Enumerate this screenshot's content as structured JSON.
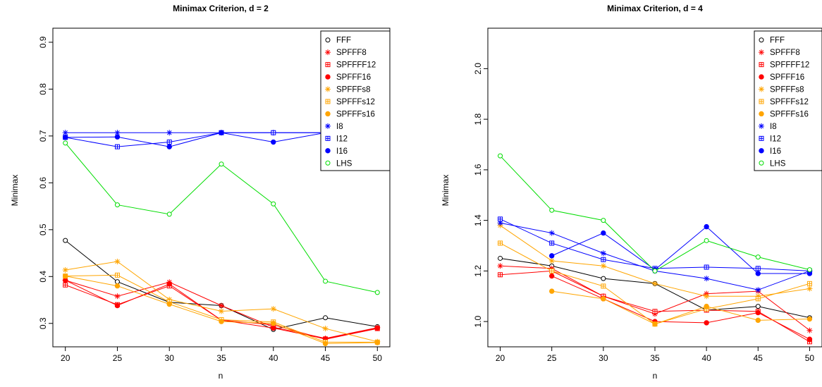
{
  "chart_data": [
    {
      "type": "line",
      "title": "Minimax Criterion, d = 2",
      "xlabel": "n",
      "ylabel": "Minimax",
      "xlim": [
        20,
        50
      ],
      "ylim": [
        0.25,
        0.93
      ],
      "x_ticks": [
        "20",
        "25",
        "30",
        "35",
        "40",
        "45",
        "50"
      ],
      "y_ticks": [
        "0.3",
        "0.4",
        "0.5",
        "0.6",
        "0.7",
        "0.8",
        "0.9"
      ],
      "legend_position": "top-right",
      "x": [
        20,
        25,
        30,
        35,
        40,
        45,
        50
      ],
      "series": [
        {
          "name": "FFF",
          "color": "#000000",
          "symbol": "circle-open",
          "values": [
            0.477,
            0.389,
            0.345,
            0.338,
            0.287,
            0.312,
            0.293
          ]
        },
        {
          "name": "SPFFF8",
          "color": "#ff0000",
          "symbol": "star",
          "values": [
            0.392,
            0.358,
            0.388,
            0.338,
            0.292,
            0.268,
            0.291
          ]
        },
        {
          "name": "SPFFFF12",
          "color": "#ff0000",
          "symbol": "square-plus",
          "values": [
            0.382,
            0.34,
            0.38,
            0.307,
            0.297,
            0.266,
            0.289
          ]
        },
        {
          "name": "SPFFF16",
          "color": "#ff0000",
          "symbol": "circle-filled",
          "values": [
            0.392,
            0.338,
            0.384,
            0.307,
            0.29,
            0.267,
            0.29
          ]
        },
        {
          "name": "SPFFFs8",
          "color": "#ffa500",
          "symbol": "star",
          "values": [
            0.414,
            0.432,
            0.351,
            0.326,
            0.331,
            0.289,
            0.261
          ]
        },
        {
          "name": "SPFFFs12",
          "color": "#ffa500",
          "symbol": "square-plus",
          "values": [
            0.401,
            0.403,
            0.346,
            0.308,
            0.303,
            0.26,
            0.26
          ]
        },
        {
          "name": "SPFFFs16",
          "color": "#ffa500",
          "symbol": "circle-filled",
          "values": [
            0.401,
            0.38,
            0.341,
            0.304,
            0.3,
            0.257,
            0.259
          ]
        },
        {
          "name": "I8",
          "color": "#0000ff",
          "symbol": "star",
          "values": [
            0.707,
            0.707,
            0.707,
            0.707,
            0.707,
            0.707,
            0.707
          ]
        },
        {
          "name": "I12",
          "color": "#0000ff",
          "symbol": "square-plus",
          "values": [
            0.697,
            0.677,
            0.687,
            0.707,
            0.707,
            0.707,
            0.707
          ]
        },
        {
          "name": "I16",
          "color": "#0000ff",
          "symbol": "circle-filled",
          "values": [
            0.697,
            0.698,
            0.677,
            0.707,
            0.687,
            0.707,
            0.707
          ]
        },
        {
          "name": "LHS",
          "color": "#00dd00",
          "symbol": "circle-open",
          "values": [
            0.685,
            0.553,
            0.533,
            0.64,
            0.555,
            0.39,
            0.366
          ]
        }
      ]
    },
    {
      "type": "line",
      "title": "Minimax Criterion, d = 4",
      "xlabel": "n",
      "ylabel": "Minimax",
      "xlim": [
        20,
        50
      ],
      "ylim": [
        0.9,
        2.16
      ],
      "x_ticks": [
        "20",
        "25",
        "30",
        "35",
        "40",
        "45",
        "50"
      ],
      "y_ticks": [
        "1.0",
        "1.2",
        "1.4",
        "1.6",
        "1.8",
        "2.0"
      ],
      "legend_position": "top-right",
      "x": [
        20,
        25,
        30,
        35,
        40,
        45,
        50
      ],
      "series": [
        {
          "name": "FFF",
          "color": "#000000",
          "symbol": "circle-open",
          "values": [
            1.25,
            1.22,
            1.17,
            1.15,
            1.045,
            1.06,
            1.015
          ]
        },
        {
          "name": "SPFFF8",
          "color": "#ff0000",
          "symbol": "star",
          "values": [
            1.22,
            1.21,
            1.1,
            1.03,
            1.11,
            1.12,
            0.965
          ]
        },
        {
          "name": "SPFFFF12",
          "color": "#ff0000",
          "symbol": "square-plus",
          "values": [
            1.185,
            1.2,
            1.1,
            1.04,
            1.045,
            1.04,
            0.92
          ]
        },
        {
          "name": "SPFFF16",
          "color": "#ff0000",
          "symbol": "circle-filled",
          "values": [
            null,
            1.18,
            1.09,
            1.0,
            0.995,
            1.035,
            0.93
          ]
        },
        {
          "name": "SPFFFs8",
          "color": "#ffa500",
          "symbol": "star",
          "values": [
            1.38,
            1.24,
            1.22,
            1.15,
            1.1,
            1.1,
            1.13
          ]
        },
        {
          "name": "SPFFFs12",
          "color": "#ffa500",
          "symbol": "square-plus",
          "values": [
            1.31,
            1.2,
            1.14,
            0.99,
            1.05,
            1.09,
            1.15
          ]
        },
        {
          "name": "SPFFFs16",
          "color": "#ffa500",
          "symbol": "circle-filled",
          "values": [
            null,
            1.12,
            1.09,
            0.99,
            1.06,
            1.005,
            1.01
          ]
        },
        {
          "name": "I8",
          "color": "#0000ff",
          "symbol": "star",
          "values": [
            1.39,
            1.35,
            1.27,
            1.2,
            1.17,
            1.125,
            1.2
          ]
        },
        {
          "name": "I12",
          "color": "#0000ff",
          "symbol": "square-plus",
          "values": [
            1.405,
            1.31,
            1.245,
            1.21,
            1.215,
            1.21,
            1.2
          ]
        },
        {
          "name": "I16",
          "color": "#0000ff",
          "symbol": "circle-filled",
          "values": [
            null,
            1.26,
            1.35,
            1.205,
            1.375,
            1.19,
            1.19
          ]
        },
        {
          "name": "LHS",
          "color": "#00dd00",
          "symbol": "circle-open",
          "values": [
            1.655,
            1.44,
            1.4,
            1.2,
            1.32,
            1.255,
            1.205
          ]
        }
      ]
    }
  ]
}
